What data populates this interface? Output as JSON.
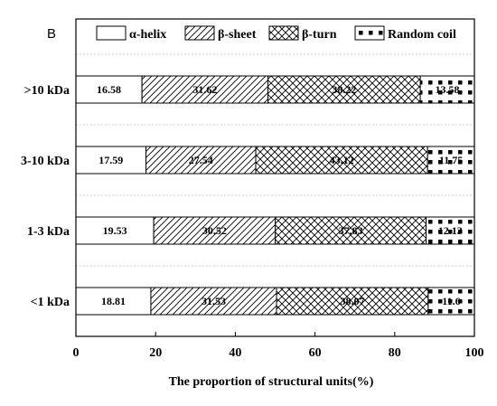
{
  "panel_label": "B",
  "chart_data": {
    "type": "bar",
    "orientation": "horizontal",
    "stacked": true,
    "categories": [
      ">10 kDa",
      "3-10 kDa",
      "1-3 kDa",
      "<1 kDa"
    ],
    "series": [
      {
        "name": "α-helix",
        "values": [
          16.58,
          17.59,
          19.53,
          18.81
        ],
        "labels": [
          "16.58",
          "17.59",
          "19.53",
          "18.81"
        ],
        "pattern": "none"
      },
      {
        "name": "β-sheet",
        "values": [
          31.62,
          27.54,
          30.52,
          31.53
        ],
        "labels": [
          "31.62",
          "27.54",
          "30.52",
          "31.53"
        ],
        "pattern": "diagonal"
      },
      {
        "name": "β-turn",
        "values": [
          38.22,
          43.12,
          37.83,
          38.07
        ],
        "labels": [
          "38.22",
          "43.12",
          "37.83",
          "38.07"
        ],
        "pattern": "crosshatch"
      },
      {
        "name": "Random coil",
        "values": [
          13.58,
          11.75,
          12.13,
          11.6
        ],
        "labels": [
          "13.58",
          "11.75",
          "12.13",
          "11.6"
        ],
        "pattern": "dots"
      }
    ],
    "title": "",
    "xlabel": "The proportion of structural units(%)",
    "ylabel": "",
    "xlim": [
      0,
      100
    ],
    "xticks": [
      "0",
      "20",
      "40",
      "60",
      "80",
      "100"
    ],
    "legend_position": "top",
    "grid": "dashed horizontal separators",
    "colors": {
      "bar_fill": "#ffffff",
      "stroke": "#000000",
      "grid": "#bbbbbb"
    }
  }
}
